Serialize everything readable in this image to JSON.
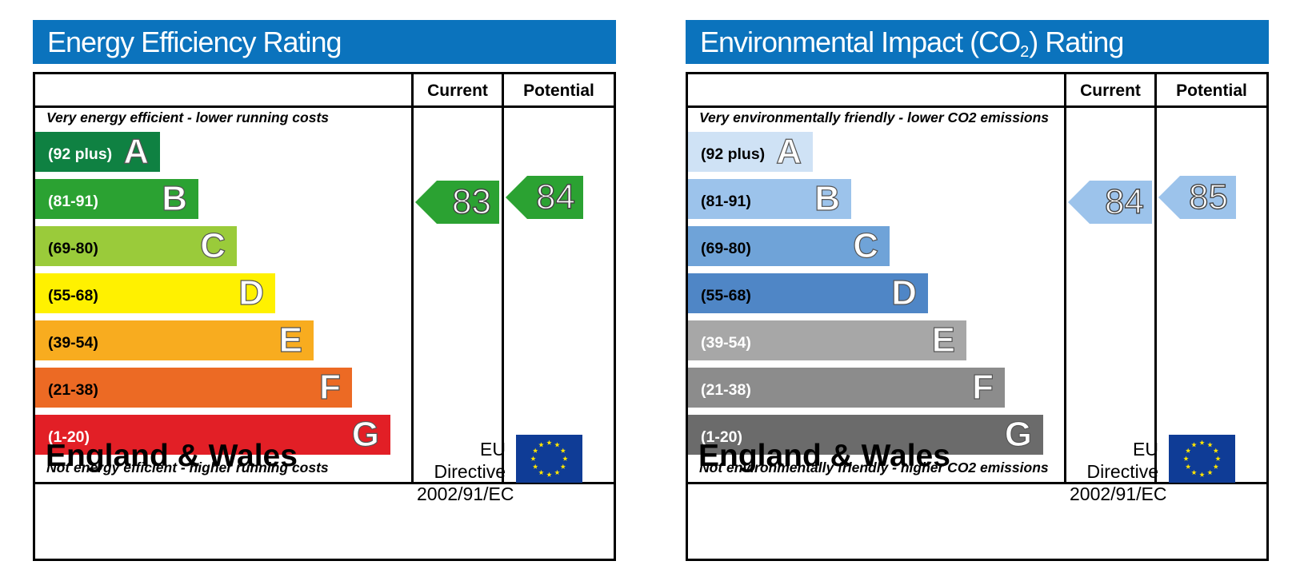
{
  "charts_meta": {
    "columns": {
      "current": "Current",
      "potential": "Potential"
    },
    "country": "England & Wales",
    "directive_line1": "EU Directive",
    "directive_line2": "2002/91/EC",
    "flag_icon": "eu-flag-icon"
  },
  "chart_data": [
    {
      "type": "bar",
      "title": "Energy Efficiency Rating",
      "top_note": "Very energy efficient - lower running costs",
      "bottom_note": "Not energy efficient - higher running costs",
      "bands": [
        {
          "range": "(92 plus)",
          "letter": "A",
          "color": "#0f8142",
          "text_color": "#ffffff"
        },
        {
          "range": "(81-91)",
          "letter": "B",
          "color": "#2ba232",
          "text_color": "#ffffff"
        },
        {
          "range": "(69-80)",
          "letter": "C",
          "color": "#9acb3a",
          "text_color": "#000000"
        },
        {
          "range": "(55-68)",
          "letter": "D",
          "color": "#fff100",
          "text_color": "#000000"
        },
        {
          "range": "(39-54)",
          "letter": "E",
          "color": "#f8ac1f",
          "text_color": "#000000"
        },
        {
          "range": "(21-38)",
          "letter": "F",
          "color": "#ec6a24",
          "text_color": "#000000"
        },
        {
          "range": "(1-20)",
          "letter": "G",
          "color": "#e21f26",
          "text_color": "#ffffff"
        }
      ],
      "current": {
        "value": 83,
        "band": "B",
        "color": "#2ba232"
      },
      "potential": {
        "value": 84,
        "band": "B",
        "color": "#2ba232"
      }
    },
    {
      "type": "bar",
      "title_main": "Environmental Impact (CO",
      "title_sub": "2",
      "title_end": ") Rating",
      "top_note": "Very environmentally friendly - lower CO2 emissions",
      "bottom_note": "Not environmentally friendly - higher CO2 emissions",
      "bands": [
        {
          "range": "(92 plus)",
          "letter": "A",
          "color": "#cfe2f5",
          "text_color": "#000000"
        },
        {
          "range": "(81-91)",
          "letter": "B",
          "color": "#9cc3eb",
          "text_color": "#000000"
        },
        {
          "range": "(69-80)",
          "letter": "C",
          "color": "#6fa3d8",
          "text_color": "#000000"
        },
        {
          "range": "(55-68)",
          "letter": "D",
          "color": "#4f86c6",
          "text_color": "#000000"
        },
        {
          "range": "(39-54)",
          "letter": "E",
          "color": "#a7a7a7",
          "text_color": "#ffffff"
        },
        {
          "range": "(21-38)",
          "letter": "F",
          "color": "#8c8c8c",
          "text_color": "#ffffff"
        },
        {
          "range": "(1-20)",
          "letter": "G",
          "color": "#6b6b6b",
          "text_color": "#ffffff"
        }
      ],
      "current": {
        "value": 84,
        "band": "B",
        "color": "#9cc3eb"
      },
      "potential": {
        "value": 85,
        "band": "B",
        "color": "#9cc3eb"
      }
    }
  ]
}
